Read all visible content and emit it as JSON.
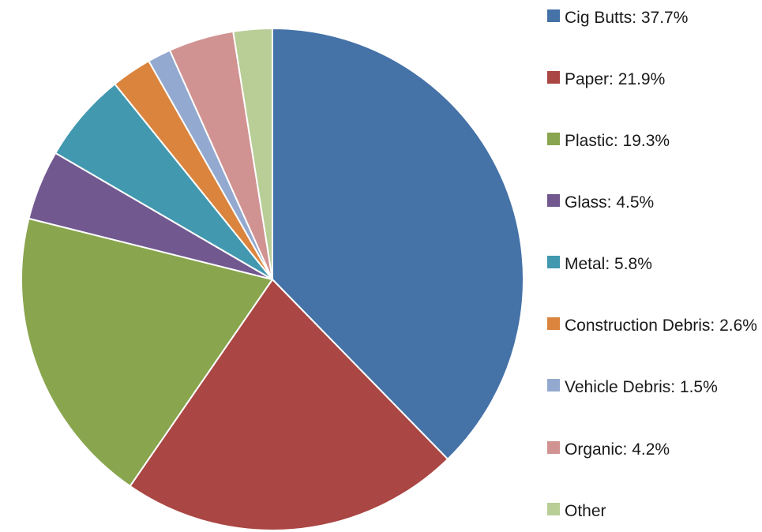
{
  "chart_data": {
    "type": "pie",
    "title": "",
    "start_angle_deg": 0,
    "direction": "clockwise",
    "slices": [
      {
        "label": "Cig Butts: 37.7%",
        "value": 37.7,
        "color": "#4572A7"
      },
      {
        "label": "Paper: 21.9%",
        "value": 21.9,
        "color": "#AA4643"
      },
      {
        "label": "Plastic: 19.3%",
        "value": 19.3,
        "color": "#89A54E"
      },
      {
        "label": "Glass: 4.5%",
        "value": 4.5,
        "color": "#71588F"
      },
      {
        "label": "Metal: 5.8%",
        "value": 5.8,
        "color": "#4198AF"
      },
      {
        "label": "Construction Debris: 2.6%",
        "value": 2.6,
        "color": "#DB843D"
      },
      {
        "label": "Vehicle Debris: 1.5%",
        "value": 1.5,
        "color": "#93A9CF"
      },
      {
        "label": "Organic: 4.2%",
        "value": 4.2,
        "color": "#D19392"
      },
      {
        "label": "Other",
        "value": 2.5,
        "color": "#B9CD96"
      }
    ],
    "legend_position": "right"
  }
}
